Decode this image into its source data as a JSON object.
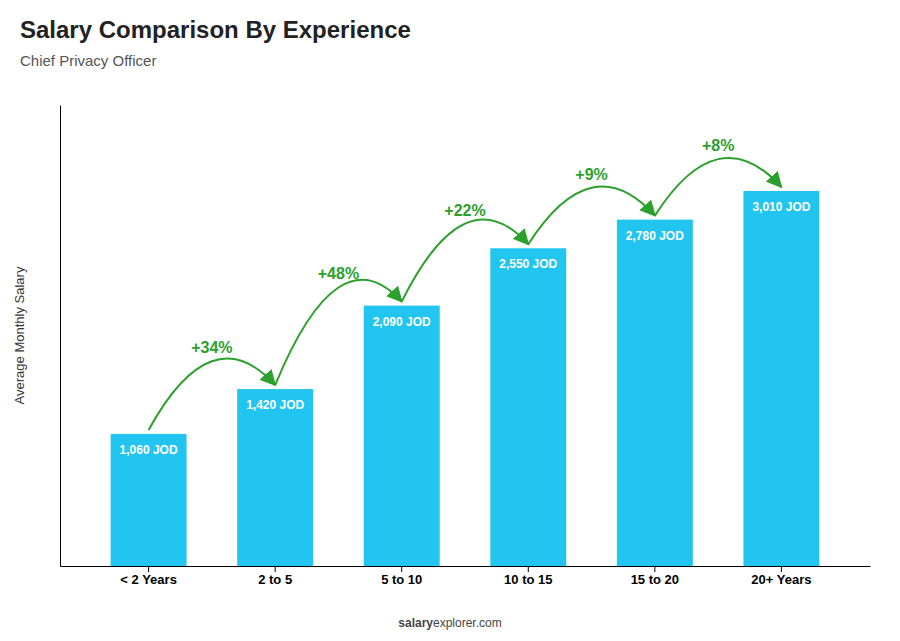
{
  "chart_data": {
    "type": "bar",
    "title": "Salary Comparison By Experience",
    "subtitle": "Chief Privacy Officer",
    "ylabel": "Average Monthly Salary",
    "categories": [
      "< 2 Years",
      "2 to 5",
      "5 to 10",
      "10 to 15",
      "15 to 20",
      "20+ Years"
    ],
    "values": [
      1060,
      1420,
      2090,
      2550,
      2780,
      3010
    ],
    "value_labels": [
      "1,060 JOD",
      "1,420 JOD",
      "2,090 JOD",
      "2,550 JOD",
      "2,780 JOD",
      "3,010 JOD"
    ],
    "data_labels": true,
    "annotations": [
      "+34%",
      "+48%",
      "+22%",
      "+9%",
      "+8%"
    ],
    "footer": [
      "salary",
      "explorer.com"
    ],
    "color": "#22c5f0",
    "ylim": [
      0,
      3700
    ],
    "grid": false,
    "tick_labels": "x"
  }
}
